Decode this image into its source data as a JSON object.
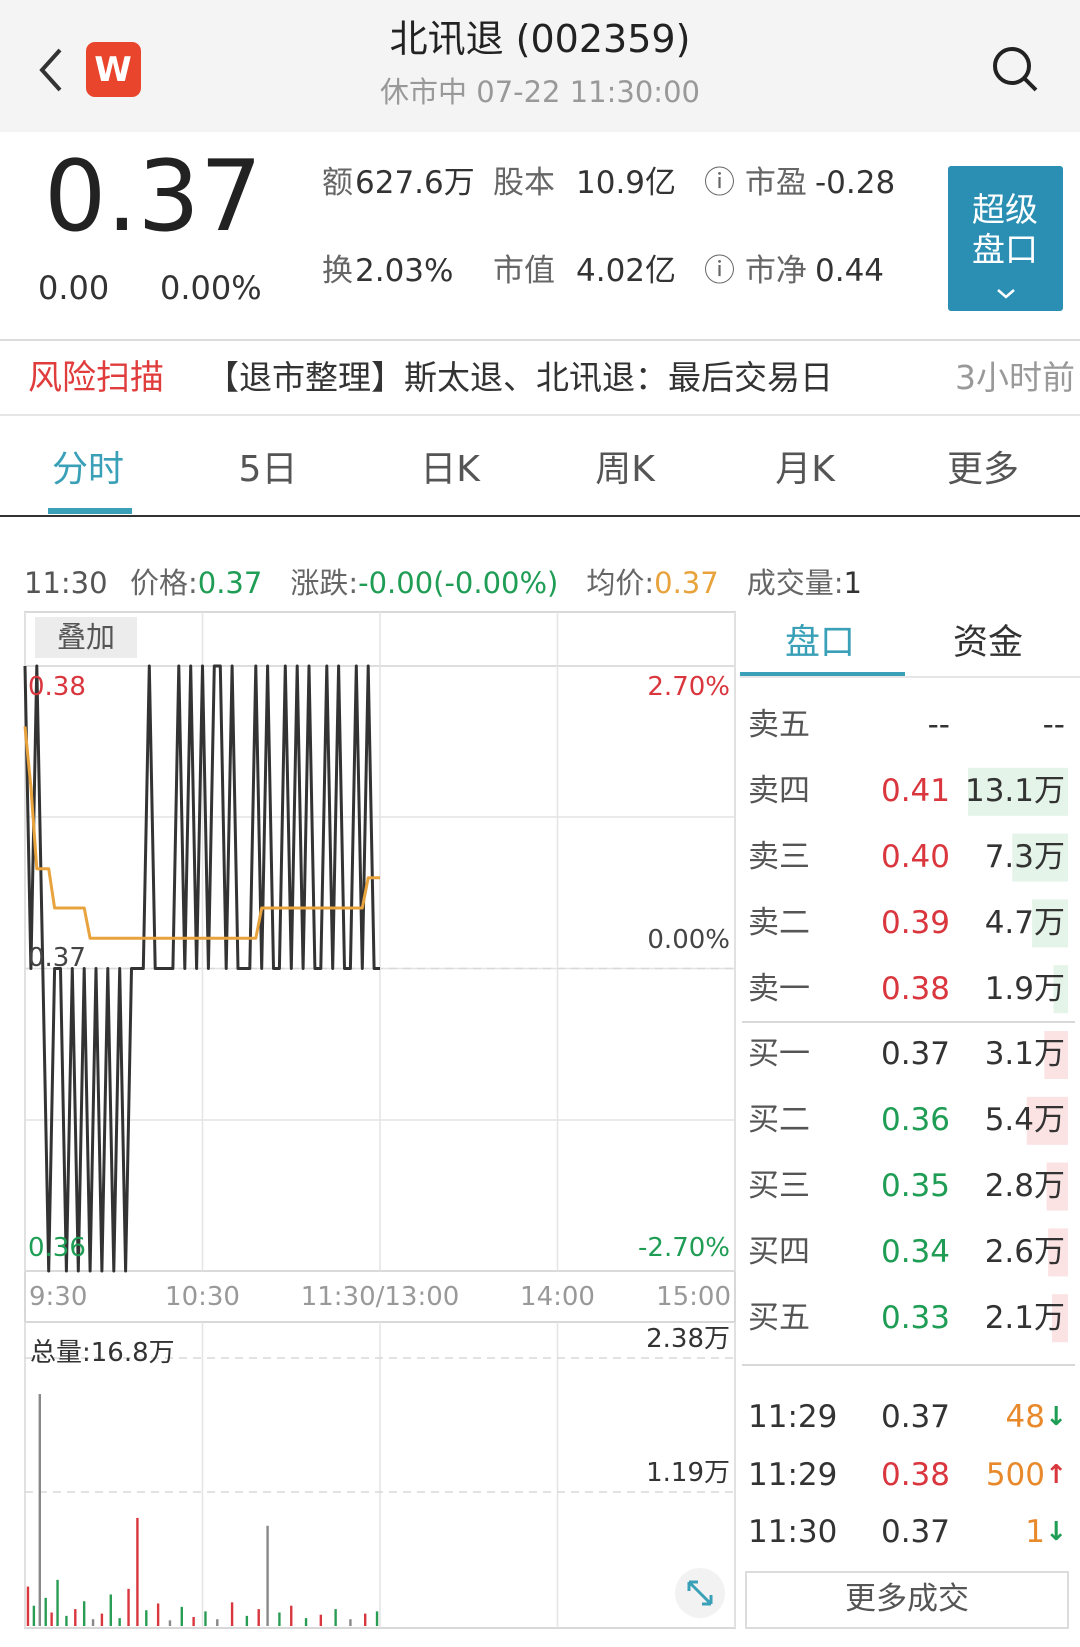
{
  "header": {
    "title": "北讯退 (002359)",
    "status": "休市中 07-22 11:30:00",
    "app_icon": "W"
  },
  "quote": {
    "price": "0.37",
    "change": "0.00",
    "change_pct": "0.00%",
    "stats": [
      [
        {
          "label": "额",
          "value": "627.6万"
        },
        {
          "label": "股本",
          "value": "10.9亿"
        },
        {
          "label": "ⓘ 市盈",
          "value": "-0.28"
        }
      ],
      [
        {
          "label": "换",
          "value": "2.03%"
        },
        {
          "label": "市值",
          "value": "4.02亿"
        },
        {
          "label": "ⓘ 市净",
          "value": "0.44"
        }
      ]
    ],
    "super_button": [
      "超级",
      "盘口"
    ]
  },
  "risk": {
    "label": "风险扫描",
    "text": "【退市整理】斯太退、北讯退：最后交易日",
    "time": "3小时前"
  },
  "tabs": [
    "分时",
    "5日",
    "日K",
    "周K",
    "月K",
    "更多"
  ],
  "info": {
    "time": "11:30",
    "items": [
      {
        "label": "价格:",
        "value": "0.37",
        "color": "#1f9d55"
      },
      {
        "label": "涨跌:",
        "value": "-0.00(-0.00%)",
        "color": "#1f9d55"
      },
      {
        "label": "均价:",
        "value": "0.37",
        "color": "#e8a33d"
      },
      {
        "label": "成交量:",
        "value": "1",
        "color": "#333333"
      }
    ]
  },
  "overlay_button": "叠加",
  "chart_data": [
    {
      "type": "line",
      "x": [
        0,
        2,
        4,
        6,
        8,
        10,
        12,
        14,
        16,
        18,
        20,
        22,
        24,
        26,
        28,
        30,
        32,
        34,
        36,
        38,
        40,
        42,
        44,
        46,
        48,
        50,
        52,
        54,
        56,
        58,
        60,
        62,
        64,
        66,
        68,
        70,
        72,
        74,
        76,
        78,
        80,
        82,
        84,
        86,
        88,
        90,
        92,
        94,
        96,
        98,
        100,
        102,
        104,
        106,
        108,
        110,
        112,
        114,
        116,
        118,
        120
      ],
      "series": [
        {
          "color": "#333333",
          "values": [
            0.38,
            0.37,
            0.38,
            0.37,
            0.36,
            0.37,
            0.37,
            0.36,
            0.37,
            0.36,
            0.37,
            0.36,
            0.37,
            0.36,
            0.37,
            0.36,
            0.37,
            0.36,
            0.37,
            0.37,
            0.37,
            0.38,
            0.37,
            0.37,
            0.37,
            0.37,
            0.38,
            0.37,
            0.38,
            0.37,
            0.38,
            0.37,
            0.38,
            0.38,
            0.37,
            0.38,
            0.37,
            0.37,
            0.37,
            0.38,
            0.37,
            0.38,
            0.37,
            0.37,
            0.38,
            0.37,
            0.38,
            0.37,
            0.38,
            0.37,
            0.37,
            0.38,
            0.37,
            0.38,
            0.37,
            0.37,
            0.38,
            0.37,
            0.38,
            0.37,
            0.37
          ]
        },
        {
          "color": "#e8a33d",
          "values": [
            0.378,
            0.376,
            0.3733,
            0.3733,
            0.3733,
            0.372,
            0.372,
            0.372,
            0.372,
            0.372,
            0.372,
            0.371,
            0.371,
            0.371,
            0.371,
            0.371,
            0.371,
            0.371,
            0.371,
            0.371,
            0.371,
            0.371,
            0.371,
            0.371,
            0.371,
            0.371,
            0.371,
            0.371,
            0.371,
            0.371,
            0.371,
            0.371,
            0.371,
            0.371,
            0.371,
            0.371,
            0.371,
            0.371,
            0.371,
            0.371,
            0.372,
            0.372,
            0.372,
            0.372,
            0.372,
            0.372,
            0.372,
            0.372,
            0.372,
            0.372,
            0.372,
            0.372,
            0.372,
            0.372,
            0.372,
            0.372,
            0.372,
            0.372,
            0.373,
            0.373,
            0.373
          ]
        }
      ],
      "xlim": [
        0,
        240
      ],
      "xticks": [
        {
          "value": 0,
          "label": "9:30"
        },
        {
          "value": 60,
          "label": "10:30"
        },
        {
          "value": 120,
          "label": "11:30/13:00"
        },
        {
          "value": 180,
          "label": "14:00"
        },
        {
          "value": 240,
          "label": "15:00"
        }
      ],
      "ylim": [
        0.36,
        0.38
      ],
      "yticks": [
        0.36,
        0.37,
        0.38
      ],
      "y2lim": [
        -2.7,
        2.7
      ],
      "y2ticks": [
        {
          "value": -2.7,
          "label": "-2.70%"
        },
        {
          "value": 0,
          "label": "0.00%"
        },
        {
          "value": 2.7,
          "label": "2.70%"
        }
      ],
      "grid": true
    },
    {
      "type": "bar",
      "title": "总量:16.8万",
      "x": [
        1,
        3,
        5,
        7,
        9,
        11,
        14,
        17,
        20,
        23,
        26,
        29,
        32,
        35,
        38,
        41,
        45,
        49,
        53,
        57,
        61,
        65,
        70,
        75,
        79,
        82,
        86,
        90,
        95,
        100,
        105,
        110,
        115,
        119
      ],
      "values": [
        3500,
        1800,
        20600,
        2500,
        1200,
        4100,
        900,
        1500,
        2200,
        600,
        1100,
        2800,
        700,
        3300,
        9600,
        1400,
        2000,
        500,
        1700,
        800,
        1300,
        600,
        2100,
        900,
        1500,
        8900,
        1200,
        1800,
        700,
        1000,
        1500,
        600,
        1100,
        1300
      ],
      "colors": [
        "#d9363e",
        "#2a9d55",
        "#888888",
        "#2a9d55",
        "#d9363e",
        "#2a9d55",
        "#2a9d55",
        "#d9363e",
        "#2a9d55",
        "#888888",
        "#d9363e",
        "#2a9d55",
        "#2a9d55",
        "#d9363e",
        "#d9363e",
        "#2a9d55",
        "#d9363e",
        "#888888",
        "#2a9d55",
        "#d9363e",
        "#2a9d55",
        "#888888",
        "#d9363e",
        "#2a9d55",
        "#d9363e",
        "#888888",
        "#2a9d55",
        "#d9363e",
        "#2a9d55",
        "#d9363e",
        "#2a9d55",
        "#888888",
        "#d9363e",
        "#2a9d55"
      ],
      "xlim": [
        0,
        240
      ],
      "ylim": [
        0,
        27000
      ],
      "yticks": [
        {
          "value": 11900,
          "label": "1.19万"
        },
        {
          "value": 23800,
          "label": "2.38万"
        }
      ]
    }
  ],
  "order_book": {
    "tabs": [
      "盘口",
      "资金"
    ],
    "asks": [
      {
        "label": "卖五",
        "price": "--",
        "volume": "--"
      },
      {
        "label": "卖四",
        "price": "0.41",
        "volume": "13.1万"
      },
      {
        "label": "卖三",
        "price": "0.40",
        "volume": "7.3万"
      },
      {
        "label": "卖二",
        "price": "0.39",
        "volume": "4.7万"
      },
      {
        "label": "卖一",
        "price": "0.38",
        "volume": "1.9万"
      }
    ],
    "bids": [
      {
        "label": "买一",
        "price": "0.37",
        "volume": "3.1万"
      },
      {
        "label": "买二",
        "price": "0.36",
        "volume": "5.4万"
      },
      {
        "label": "买三",
        "price": "0.35",
        "volume": "2.8万"
      },
      {
        "label": "买四",
        "price": "0.34",
        "volume": "2.6万"
      },
      {
        "label": "买五",
        "price": "0.33",
        "volume": "2.1万"
      }
    ]
  },
  "trades": [
    {
      "time": "11:29",
      "price": "0.37",
      "volume": "48",
      "arrow": "↓"
    },
    {
      "time": "11:29",
      "price": "0.38",
      "volume": "500",
      "arrow": "↑"
    },
    {
      "time": "11:30",
      "price": "0.37",
      "volume": "1",
      "arrow": "↓"
    }
  ],
  "more_trades": "更多成交"
}
